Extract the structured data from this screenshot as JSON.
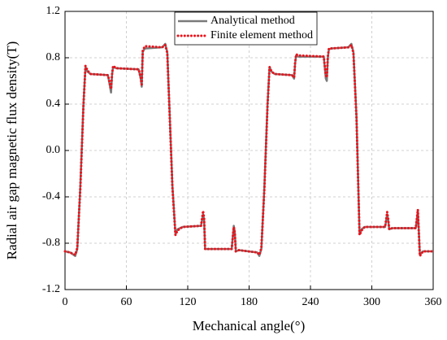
{
  "chart_data": {
    "type": "line",
    "x_label": "Mechanical angle(°)",
    "y_label": "Radial air gap magnetic flux density(T)",
    "x": [
      0,
      5,
      10,
      12,
      15,
      18,
      20,
      22,
      25,
      42,
      44,
      45,
      46,
      47,
      50,
      72,
      74,
      75,
      76,
      78,
      95,
      98,
      100,
      102,
      105,
      108,
      110,
      115,
      133,
      135,
      136,
      137,
      140,
      163,
      165,
      166,
      167,
      170,
      188,
      190,
      192,
      195,
      198,
      200,
      202,
      205,
      222,
      224,
      225,
      226,
      228,
      253,
      255,
      256,
      257,
      258,
      260,
      277,
      279,
      280,
      282,
      285,
      288,
      290,
      293,
      313,
      315,
      316,
      317,
      320,
      343,
      345,
      346,
      347,
      350,
      360
    ],
    "series": [
      {
        "name": "Analytical method",
        "color": "#7a7a7a",
        "style": "solid",
        "values": [
          -0.87,
          -0.88,
          -0.91,
          -0.85,
          -0.3,
          0.4,
          0.72,
          0.68,
          0.66,
          0.65,
          0.55,
          0.5,
          0.65,
          0.72,
          0.71,
          0.7,
          0.62,
          0.55,
          0.85,
          0.88,
          0.89,
          0.92,
          0.85,
          0.4,
          -0.3,
          -0.72,
          -0.68,
          -0.66,
          -0.65,
          -0.55,
          -0.6,
          -0.85,
          -0.85,
          -0.85,
          -0.65,
          -0.7,
          -0.87,
          -0.86,
          -0.88,
          -0.91,
          -0.85,
          -0.3,
          0.4,
          0.72,
          0.68,
          0.66,
          0.65,
          0.62,
          0.75,
          0.82,
          0.81,
          0.81,
          0.62,
          0.6,
          0.8,
          0.87,
          0.88,
          0.89,
          0.91,
          0.92,
          0.85,
          0.3,
          -0.72,
          -0.68,
          -0.66,
          -0.66,
          -0.55,
          -0.6,
          -0.68,
          -0.67,
          -0.67,
          -0.52,
          -0.7,
          -0.9,
          -0.87,
          -0.87
        ]
      },
      {
        "name": "Finite element method",
        "color": "#e8141c",
        "style": "dotted",
        "values": [
          -0.87,
          -0.88,
          -0.9,
          -0.84,
          -0.32,
          0.38,
          0.73,
          0.69,
          0.66,
          0.65,
          0.57,
          0.53,
          0.66,
          0.73,
          0.71,
          0.7,
          0.63,
          0.57,
          0.86,
          0.9,
          0.89,
          0.91,
          0.84,
          0.38,
          -0.32,
          -0.73,
          -0.69,
          -0.66,
          -0.65,
          -0.52,
          -0.58,
          -0.85,
          -0.85,
          -0.85,
          -0.66,
          -0.71,
          -0.87,
          -0.86,
          -0.88,
          -0.9,
          -0.84,
          -0.32,
          0.38,
          0.72,
          0.68,
          0.66,
          0.65,
          0.63,
          0.76,
          0.83,
          0.82,
          0.81,
          0.65,
          0.63,
          0.81,
          0.88,
          0.88,
          0.89,
          0.9,
          0.91,
          0.84,
          0.28,
          -0.73,
          -0.69,
          -0.66,
          -0.66,
          -0.53,
          -0.59,
          -0.68,
          -0.67,
          -0.67,
          -0.51,
          -0.72,
          -0.91,
          -0.87,
          -0.87
        ]
      }
    ],
    "xlim": [
      0,
      360
    ],
    "xticks": [
      0,
      60,
      120,
      180,
      240,
      300,
      360
    ],
    "ylim": [
      -1.2,
      1.2
    ],
    "yticks": [
      -1.2,
      -0.8,
      -0.4,
      {
        "value": 0,
        "label": "0.0"
      },
      0.4,
      0.8,
      1.2
    ],
    "grid": true,
    "legend": "top"
  }
}
